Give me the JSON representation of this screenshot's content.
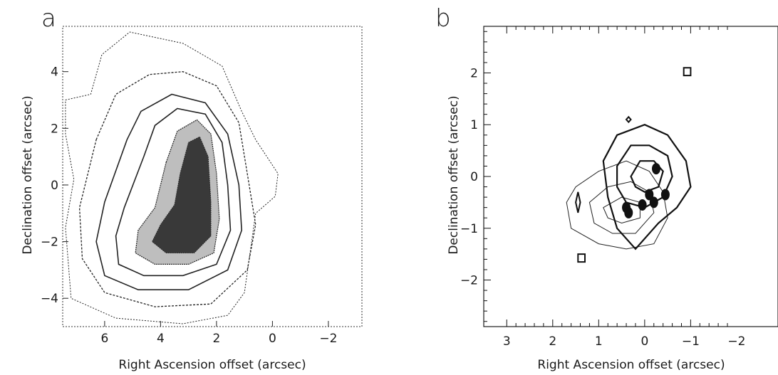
{
  "chart_data": [
    {
      "panel_label": "a",
      "type": "contour",
      "xlabel": "Right Ascension offset (arcsec)",
      "ylabel": "Declination offset (arcsec)",
      "xlim": [
        7.5,
        -3.2
      ],
      "ylim": [
        -5.0,
        5.6
      ],
      "xticks": [
        6,
        4,
        2,
        0,
        -2
      ],
      "xtick_labels": [
        "6",
        "4",
        "2",
        "0",
        "−2"
      ],
      "yticks": [
        4,
        2,
        0,
        -2,
        -4
      ],
      "ytick_labels": [
        "4",
        "2",
        "0",
        "−2",
        "−4"
      ],
      "grid": false,
      "description_of_marks": "nested arc-shaped contours around a dense stippled crescent centred near (2.5, -0.5)",
      "contours": [
        [
          [
            7.4,
            3.0
          ],
          [
            6.5,
            3.2
          ],
          [
            6.1,
            4.6
          ],
          [
            5.1,
            5.4
          ],
          [
            3.2,
            5.0
          ],
          [
            1.8,
            4.2
          ],
          [
            1.1,
            2.6
          ],
          [
            0.6,
            1.6
          ],
          [
            -0.2,
            0.4
          ],
          [
            -0.1,
            -0.4
          ],
          [
            0.6,
            -1.0
          ],
          [
            1.0,
            -3.8
          ],
          [
            1.6,
            -4.6
          ],
          [
            3.2,
            -4.9
          ],
          [
            5.6,
            -4.7
          ],
          [
            7.2,
            -4.0
          ],
          [
            7.4,
            -1.5
          ],
          [
            7.1,
            0.2
          ],
          [
            7.4,
            1.8
          ]
        ],
        [
          [
            6.3,
            1.6
          ],
          [
            5.6,
            3.2
          ],
          [
            4.4,
            3.9
          ],
          [
            3.2,
            4.0
          ],
          [
            2.0,
            3.5
          ],
          [
            1.2,
            2.2
          ],
          [
            0.9,
            0.4
          ],
          [
            0.6,
            -1.4
          ],
          [
            0.9,
            -3.0
          ],
          [
            2.2,
            -4.2
          ],
          [
            4.2,
            -4.3
          ],
          [
            6.0,
            -3.8
          ],
          [
            6.8,
            -2.6
          ],
          [
            6.9,
            -0.8
          ]
        ],
        [
          [
            5.2,
            1.6
          ],
          [
            4.7,
            2.6
          ],
          [
            3.6,
            3.2
          ],
          [
            2.4,
            2.9
          ],
          [
            1.6,
            1.8
          ],
          [
            1.2,
            0.0
          ],
          [
            1.1,
            -1.6
          ],
          [
            1.6,
            -3.0
          ],
          [
            3.0,
            -3.7
          ],
          [
            4.8,
            -3.7
          ],
          [
            6.0,
            -3.2
          ],
          [
            6.3,
            -2.0
          ],
          [
            6.0,
            -0.6
          ]
        ],
        [
          [
            4.6,
            1.0
          ],
          [
            4.2,
            2.1
          ],
          [
            3.4,
            2.7
          ],
          [
            2.4,
            2.5
          ],
          [
            1.8,
            1.5
          ],
          [
            1.6,
            0.0
          ],
          [
            1.5,
            -1.6
          ],
          [
            2.0,
            -2.8
          ],
          [
            3.2,
            -3.2
          ],
          [
            4.6,
            -3.2
          ],
          [
            5.5,
            -2.8
          ],
          [
            5.6,
            -1.8
          ],
          [
            5.3,
            -0.8
          ]
        ],
        [
          [
            3.8,
            0.8
          ],
          [
            3.4,
            1.9
          ],
          [
            2.7,
            2.3
          ],
          [
            2.2,
            1.8
          ],
          [
            2.0,
            0.4
          ],
          [
            1.9,
            -1.2
          ],
          [
            2.1,
            -2.4
          ],
          [
            3.0,
            -2.8
          ],
          [
            4.2,
            -2.8
          ],
          [
            4.9,
            -2.4
          ],
          [
            4.8,
            -1.6
          ],
          [
            4.2,
            -0.8
          ]
        ],
        [
          [
            3.3,
            0.4
          ],
          [
            3.0,
            1.5
          ],
          [
            2.6,
            1.7
          ],
          [
            2.3,
            1.0
          ],
          [
            2.2,
            -0.6
          ],
          [
            2.2,
            -1.8
          ],
          [
            2.8,
            -2.4
          ],
          [
            3.8,
            -2.4
          ],
          [
            4.3,
            -2.0
          ],
          [
            4.0,
            -1.4
          ],
          [
            3.5,
            -0.7
          ]
        ]
      ]
    },
    {
      "panel_label": "b",
      "type": "contour",
      "xlabel": "Right Ascension offset (arcsec)",
      "ylabel": "Declination offset (arcsec)",
      "xlim": [
        3.5,
        -2.9
      ],
      "ylim": [
        -2.9,
        2.9
      ],
      "xticks": [
        3,
        2,
        1,
        0,
        -1,
        -2
      ],
      "xtick_labels": [
        "3",
        "2",
        "1",
        "0",
        "−1",
        "−2"
      ],
      "yticks": [
        2,
        1,
        0,
        -1,
        -2
      ],
      "ytick_labels": [
        "2",
        "1",
        "0",
        "−1",
        "−2"
      ],
      "grid": false,
      "description_of_marks": "thin contour set offset to the east, bold contour set centred near (0, 0), filled dark clumps near (0.2, -0.5)",
      "thin_contours": [
        [
          [
            1.7,
            -0.5
          ],
          [
            1.5,
            -0.2
          ],
          [
            1.0,
            0.1
          ],
          [
            0.4,
            0.3
          ],
          [
            -0.1,
            0.1
          ],
          [
            -0.4,
            -0.3
          ],
          [
            -0.5,
            -0.8
          ],
          [
            -0.2,
            -1.3
          ],
          [
            0.4,
            -1.4
          ],
          [
            1.0,
            -1.3
          ],
          [
            1.6,
            -1.0
          ]
        ],
        [
          [
            1.2,
            -0.5
          ],
          [
            0.8,
            -0.2
          ],
          [
            0.3,
            -0.1
          ],
          [
            -0.1,
            -0.3
          ],
          [
            -0.2,
            -0.7
          ],
          [
            0.2,
            -1.1
          ],
          [
            0.7,
            -1.1
          ],
          [
            1.1,
            -0.9
          ]
        ],
        [
          [
            0.9,
            -0.6
          ],
          [
            0.5,
            -0.4
          ],
          [
            0.1,
            -0.5
          ],
          [
            0.1,
            -0.8
          ],
          [
            0.5,
            -0.9
          ],
          [
            0.8,
            -0.8
          ]
        ]
      ],
      "bold_contours": [
        [
          [
            0.9,
            0.3
          ],
          [
            0.6,
            0.8
          ],
          [
            0.0,
            1.0
          ],
          [
            -0.5,
            0.8
          ],
          [
            -0.9,
            0.3
          ],
          [
            -1.0,
            -0.2
          ],
          [
            -0.7,
            -0.6
          ],
          [
            -0.3,
            -0.9
          ],
          [
            0.2,
            -1.4
          ],
          [
            0.6,
            -1.0
          ],
          [
            0.8,
            -0.4
          ]
        ],
        [
          [
            0.6,
            0.2
          ],
          [
            0.3,
            0.6
          ],
          [
            -0.1,
            0.6
          ],
          [
            -0.5,
            0.4
          ],
          [
            -0.6,
            0.0
          ],
          [
            -0.4,
            -0.4
          ],
          [
            0.0,
            -0.6
          ],
          [
            0.4,
            -0.5
          ],
          [
            0.6,
            -0.2
          ]
        ],
        [
          [
            0.3,
            0.0
          ],
          [
            0.1,
            0.3
          ],
          [
            -0.2,
            0.3
          ],
          [
            -0.4,
            0.1
          ],
          [
            -0.3,
            -0.2
          ],
          [
            0.0,
            -0.3
          ],
          [
            0.2,
            -0.2
          ]
        ]
      ],
      "small_contours": [
        [
          [
            1.45,
            -0.3
          ],
          [
            1.5,
            -0.5
          ],
          [
            1.45,
            -0.7
          ],
          [
            1.4,
            -0.5
          ]
        ],
        [
          [
            1.45,
            -1.5
          ],
          [
            1.45,
            -1.65
          ],
          [
            1.3,
            -1.65
          ],
          [
            1.3,
            -1.5
          ]
        ],
        [
          [
            -0.85,
            2.1
          ],
          [
            -0.85,
            1.95
          ],
          [
            -1.0,
            1.95
          ],
          [
            -1.0,
            2.1
          ]
        ],
        [
          [
            0.4,
            1.1
          ],
          [
            0.35,
            1.05
          ],
          [
            0.3,
            1.1
          ],
          [
            0.35,
            1.15
          ]
        ]
      ],
      "filled_clumps": [
        [
          0.4,
          -0.6
        ],
        [
          0.35,
          -0.7
        ],
        [
          0.05,
          -0.55
        ],
        [
          -0.1,
          -0.35
        ],
        [
          -0.2,
          -0.5
        ],
        [
          -0.45,
          -0.35
        ],
        [
          -0.25,
          0.15
        ]
      ]
    }
  ],
  "panels": [
    {
      "letter": "a"
    },
    {
      "letter": "b"
    }
  ]
}
